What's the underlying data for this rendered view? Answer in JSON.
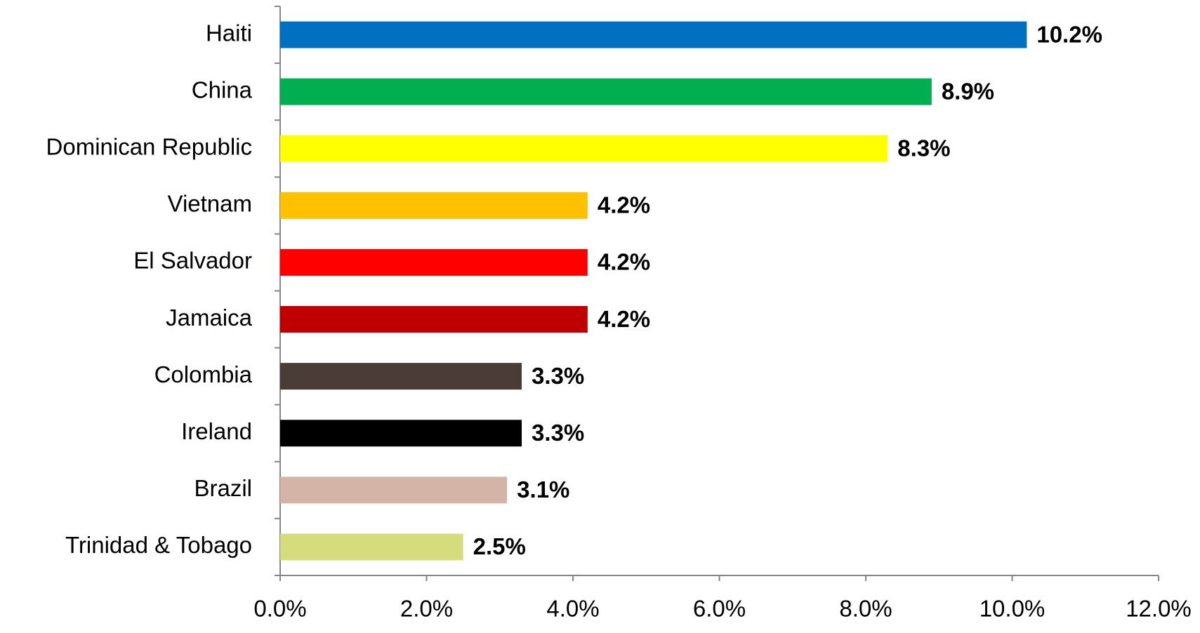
{
  "chart_data": {
    "type": "bar",
    "orientation": "horizontal",
    "categories": [
      "Haiti",
      "China",
      "Dominican Republic",
      "Vietnam",
      "El Salvador",
      "Jamaica",
      "Colombia",
      "Ireland",
      "Brazil",
      "Trinidad & Tobago"
    ],
    "values": [
      10.2,
      8.9,
      8.3,
      4.2,
      4.2,
      4.2,
      3.3,
      3.3,
      3.1,
      2.5
    ],
    "value_labels": [
      "10.2%",
      "8.9%",
      "8.3%",
      "4.2%",
      "4.2%",
      "4.2%",
      "3.3%",
      "3.3%",
      "3.1%",
      "2.5%"
    ],
    "colors": [
      "#0070c0",
      "#00b050",
      "#ffff00",
      "#ffc000",
      "#ff0000",
      "#c00000",
      "#4a3c37",
      "#000000",
      "#d5b4a8",
      "#d4dc7c"
    ],
    "xlim": [
      0,
      12
    ],
    "xticks": [
      {
        "value": 0,
        "label": "0.0%"
      },
      {
        "value": 2,
        "label": "2.0%"
      },
      {
        "value": 4,
        "label": "4.0%"
      },
      {
        "value": 6,
        "label": "6.0%"
      },
      {
        "value": 8,
        "label": "8.0%"
      },
      {
        "value": 10,
        "label": "10.0%"
      },
      {
        "value": 12,
        "label": "12.0%"
      }
    ],
    "grid": false
  }
}
